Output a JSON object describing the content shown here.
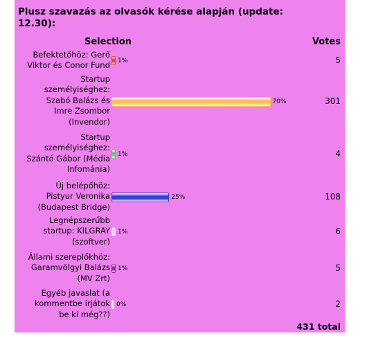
{
  "poll": {
    "title_line1": "Plusz szavazás az olvasók kérése alapján (update:",
    "title_line2": "12.30):",
    "header_selection": "Selection",
    "header_votes": "Votes",
    "total": "431 total",
    "options": [
      {
        "label_lines": [
          "Befektetőhöz: Gerő",
          "Viktor és Conor Fund"
        ],
        "percent_text": "1%",
        "percent": 1,
        "votes": "5",
        "color": "#e0463a"
      },
      {
        "label_lines": [
          "Startup",
          "személyiséghez:",
          "Szabó Balázs és",
          "Imre Zsombor",
          "(Invendor)"
        ],
        "percent_text": "70%",
        "percent": 70,
        "votes": "301",
        "color": "#ffbe4d"
      },
      {
        "label_lines": [
          "Startup",
          "személyiséghez:",
          "Szántó Gábor (Média",
          "Infománia)"
        ],
        "percent_text": "1%",
        "percent": 1,
        "votes": "4",
        "color": "#5fc85f"
      },
      {
        "label_lines": [
          "Új belépőhöz:",
          "Pistyur Veronika",
          "(Budapest Bridge)"
        ],
        "percent_text": "25%",
        "percent": 25,
        "votes": "108",
        "color": "#3b3bde"
      },
      {
        "label_lines": [
          "Legnépszerűbb",
          "startup: KILGRAY",
          "(szoftver)"
        ],
        "percent_text": "1%",
        "percent": 1,
        "votes": "6",
        "color": "#f6c8f6"
      },
      {
        "label_lines": [
          "Állami szereplőkhöz:",
          "Garamvölgyi Balázs",
          "(MV Zrt)"
        ],
        "percent_text": "1%",
        "percent": 1,
        "votes": "5",
        "color": "#9b1fae"
      },
      {
        "label_lines": [
          "Egyéb javaslat (a",
          "kommentbe írjátok",
          "be ki még??)"
        ],
        "percent_text": "0%",
        "percent": 0,
        "votes": "2",
        "color": "#dddddd"
      }
    ]
  }
}
